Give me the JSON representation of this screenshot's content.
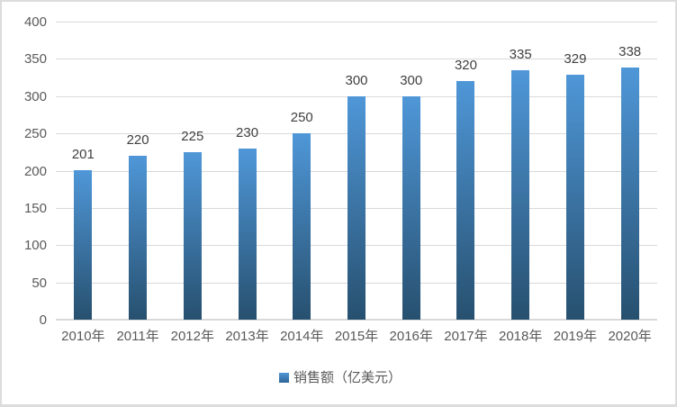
{
  "chart_data": {
    "type": "bar",
    "title": "",
    "xlabel": "",
    "ylabel": "",
    "categories": [
      "2010年",
      "2011年",
      "2012年",
      "2013年",
      "2014年",
      "2015年",
      "2016年",
      "2017年",
      "2018年",
      "2019年",
      "2020年"
    ],
    "values": [
      201,
      220,
      225,
      230,
      250,
      300,
      300,
      320,
      335,
      329,
      338
    ],
    "series_name": "销售额（亿美元）",
    "ylim": [
      0,
      400
    ],
    "yticks": [
      0,
      50,
      100,
      150,
      200,
      250,
      300,
      350,
      400
    ],
    "grid": true,
    "legend_position": "bottom",
    "colors": {
      "bar_top": "#4f97d8",
      "bar_bottom": "#27506f",
      "gridline": "#d9d9d9",
      "axis_text": "#595959",
      "data_label": "#404040",
      "frame_border": "#dcdcdc"
    }
  },
  "legend": {
    "label": "销售额（亿美元）"
  }
}
